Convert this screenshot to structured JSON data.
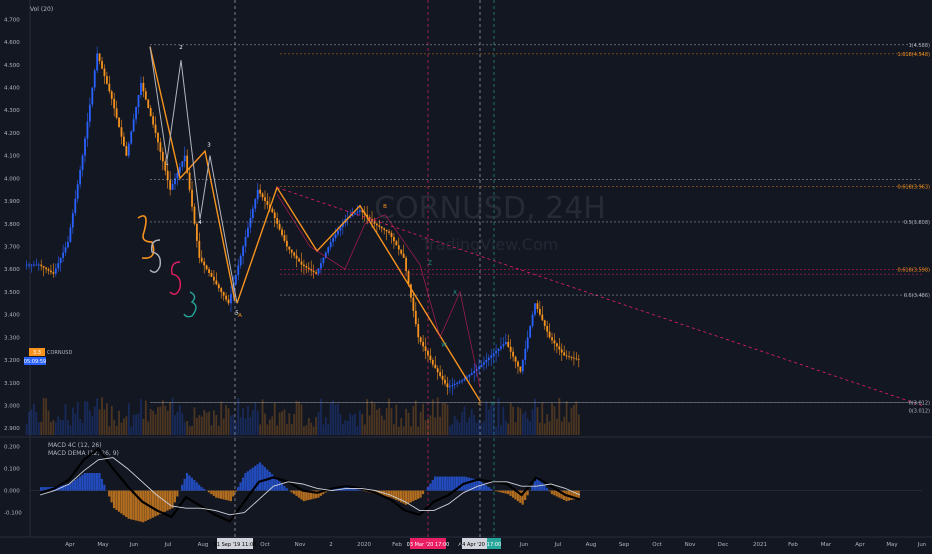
{
  "chart_data": [
    {
      "type": "candlestick",
      "symbol": "CORNUSD",
      "watermark": "CORNUSD, 24H",
      "vol_label": "Vol (20)",
      "price_badges": [
        "3.3",
        "05:09:59"
      ],
      "y_ticks": [
        "4.700",
        "4.600",
        "4.500",
        "4.400",
        "4.300",
        "4.200",
        "4.100",
        "4.000",
        "3.900",
        "3.800",
        "3.700",
        "3.600",
        "3.500",
        "3.400",
        "3.300",
        "3.200",
        "3.100",
        "3.000",
        "2.900"
      ],
      "ylim": [
        2.87,
        4.75
      ],
      "series": [
        {
          "name": "CORNUSD",
          "x": [
            2,
            5,
            8,
            11,
            14,
            17,
            20,
            23,
            26,
            29,
            32,
            35,
            38,
            41,
            44,
            47,
            50,
            53,
            56,
            59,
            62,
            65,
            68,
            71,
            74,
            77,
            80,
            83,
            86,
            89,
            92,
            95,
            98,
            101,
            104,
            107,
            110,
            113
          ],
          "values": [
            3.62,
            3.58,
            3.72,
            4.1,
            4.55,
            4.35,
            4.1,
            4.42,
            4.2,
            3.95,
            4.1,
            3.65,
            3.55,
            3.45,
            3.7,
            3.95,
            3.85,
            3.7,
            3.62,
            3.58,
            3.72,
            3.82,
            3.86,
            3.8,
            3.76,
            3.65,
            3.3,
            3.18,
            3.08,
            3.11,
            3.16,
            3.22,
            3.28,
            3.15,
            3.45,
            3.3,
            3.22,
            3.2
          ]
        }
      ],
      "fib_levels": [
        "1(4.588)",
        "1.618(4.548)",
        "0.618(3.963)",
        "0.5(3.808)",
        "0.618(3.598)",
        "0.5(3.486)",
        "0(3.012)",
        "0(3.012)"
      ],
      "wave_labels": [
        "1",
        "2",
        "3",
        "4",
        "5",
        "1",
        "2",
        "A",
        "B",
        "C",
        "W",
        "X",
        "Y",
        "Z"
      ],
      "x_ticks": [
        "Apr",
        "May",
        "Jun",
        "Jul",
        "Aug",
        "Oct",
        "Nov",
        "2",
        "2020",
        "Feb",
        "Mar",
        "Apr",
        "Jun",
        "Jul",
        "Aug",
        "Sep",
        "Oct",
        "Nov",
        "Dec",
        "2021",
        "Feb",
        "Mar",
        "Apr",
        "May",
        "Jun"
      ]
    },
    {
      "type": "line",
      "legend": [
        "MACD 4C (12, 26)",
        "MACD DEMA (12, 26, 9)"
      ],
      "y_ticks": [
        "0.200",
        "0.100",
        "0.000",
        "-0.100"
      ],
      "ylim": [
        -0.17,
        0.23
      ],
      "series": [
        {
          "name": "MACD",
          "values": [
            -0.01,
            0.01,
            0.05,
            0.14,
            0.19,
            0.1,
            0.02,
            -0.05,
            -0.09,
            -0.12,
            -0.03,
            -0.07,
            -0.11,
            -0.14,
            -0.05,
            0.04,
            0.06,
            0.04,
            0.0,
            -0.01,
            0.01,
            0.02,
            0.01,
            -0.01,
            -0.04,
            -0.09,
            -0.11,
            -0.05,
            -0.02,
            0.03,
            0.05,
            0.04,
            0.03,
            -0.02,
            0.06,
            0.02,
            -0.02,
            -0.04
          ]
        },
        {
          "name": "Signal",
          "values": [
            -0.02,
            0.0,
            0.03,
            0.09,
            0.14,
            0.15,
            0.1,
            0.04,
            -0.02,
            -0.07,
            -0.08,
            -0.08,
            -0.09,
            -0.11,
            -0.1,
            -0.04,
            0.02,
            0.04,
            0.03,
            0.01,
            0.0,
            0.01,
            0.01,
            0.0,
            -0.02,
            -0.05,
            -0.09,
            -0.09,
            -0.06,
            -0.01,
            0.02,
            0.04,
            0.04,
            0.02,
            0.02,
            0.03,
            0.01,
            -0.02
          ]
        }
      ]
    }
  ],
  "time_badges": [
    "11 Sep '19  11:00",
    "03 Mar '20  17:00",
    "24 Apr '20  11:00",
    "17:00"
  ]
}
